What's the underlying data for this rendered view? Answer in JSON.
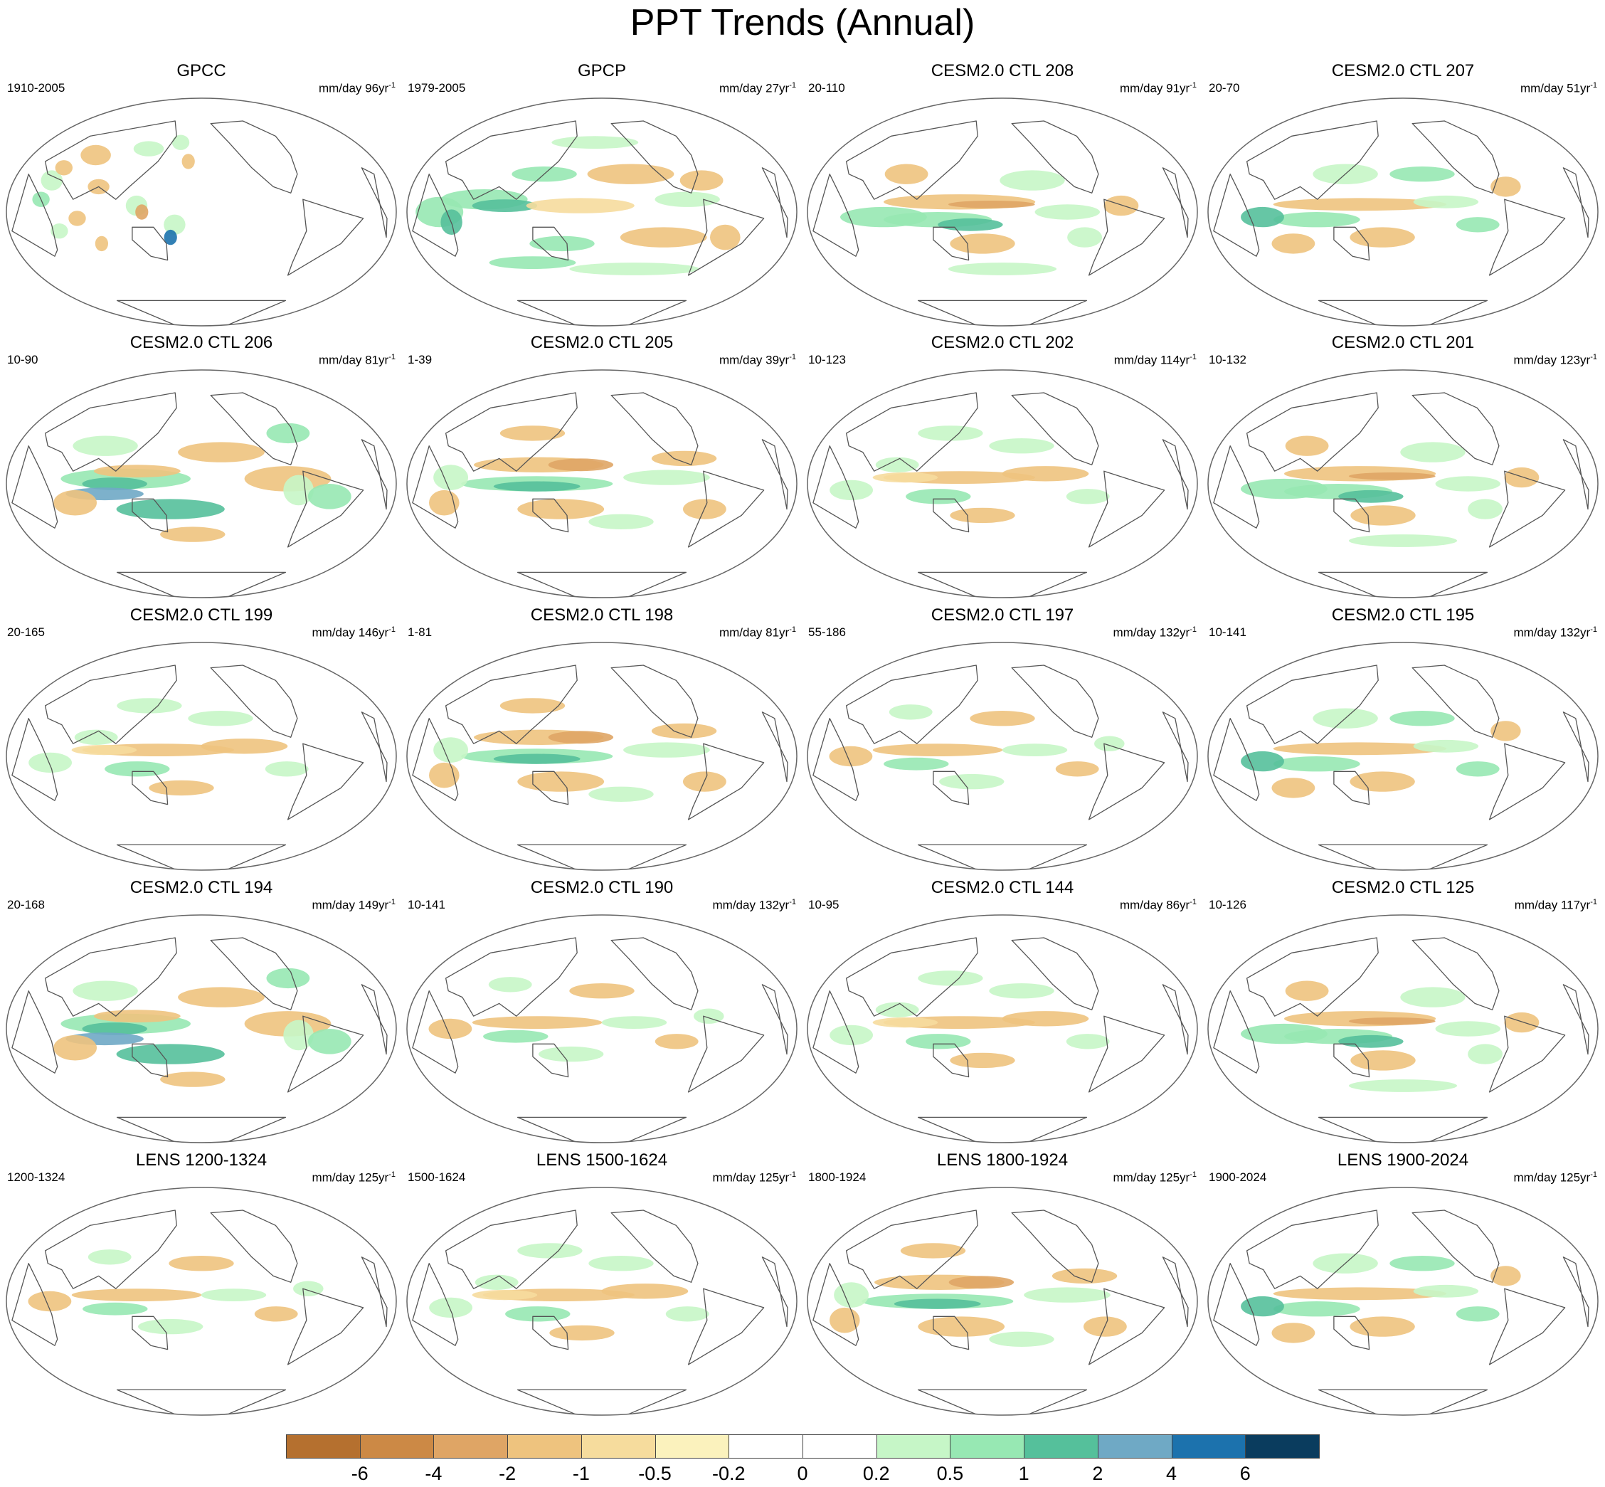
{
  "title": "PPT Trends (Annual)",
  "units_prefix": "mm/day",
  "units_suffix": "yr",
  "units_exponent": "-1",
  "panels": [
    {
      "title": "GPCC",
      "period": "1910-2005",
      "units": "mm/day 96yr",
      "pattern": "gpcc"
    },
    {
      "title": "GPCP",
      "period": "1979-2005",
      "units": "mm/day 27yr",
      "pattern": "gpcp"
    },
    {
      "title": "CESM2.0 CTL 208",
      "period": "20-110",
      "units": "mm/day 91yr",
      "pattern": "a"
    },
    {
      "title": "CESM2.0 CTL 207",
      "period": "20-70",
      "units": "mm/day 51yr",
      "pattern": "b"
    },
    {
      "title": "CESM2.0 CTL 206",
      "period": "10-90",
      "units": "mm/day 81yr",
      "pattern": "c"
    },
    {
      "title": "CESM2.0 CTL 205",
      "period": "1-39",
      "units": "mm/day 39yr",
      "pattern": "d"
    },
    {
      "title": "CESM2.0 CTL 202",
      "period": "10-123",
      "units": "mm/day 114yr",
      "pattern": "e"
    },
    {
      "title": "CESM2.0 CTL 201",
      "period": "10-132",
      "units": "mm/day 123yr",
      "pattern": "a"
    },
    {
      "title": "CESM2.0 CTL 199",
      "period": "20-165",
      "units": "mm/day 146yr",
      "pattern": "e"
    },
    {
      "title": "CESM2.0 CTL 198",
      "period": "1-81",
      "units": "mm/day 81yr",
      "pattern": "d"
    },
    {
      "title": "CESM2.0 CTL 197",
      "period": "55-186",
      "units": "mm/day 132yr",
      "pattern": "f"
    },
    {
      "title": "CESM2.0 CTL 195",
      "period": "10-141",
      "units": "mm/day 132yr",
      "pattern": "b"
    },
    {
      "title": "CESM2.0 CTL 194",
      "period": "20-168",
      "units": "mm/day 149yr",
      "pattern": "c"
    },
    {
      "title": "CESM2.0 CTL 190",
      "period": "10-141",
      "units": "mm/day 132yr",
      "pattern": "f"
    },
    {
      "title": "CESM2.0 CTL 144",
      "period": "10-95",
      "units": "mm/day 86yr",
      "pattern": "e"
    },
    {
      "title": "CESM2.0 CTL 125",
      "period": "10-126",
      "units": "mm/day 117yr",
      "pattern": "a"
    },
    {
      "title": "LENS 1200-1324",
      "period": "1200-1324",
      "units": "mm/day 125yr",
      "pattern": "f"
    },
    {
      "title": "LENS 1500-1624",
      "period": "1500-1624",
      "units": "mm/day 125yr",
      "pattern": "e"
    },
    {
      "title": "LENS 1800-1924",
      "period": "1800-1924",
      "units": "mm/day 125yr",
      "pattern": "d"
    },
    {
      "title": "LENS 1900-2024",
      "period": "1900-2024",
      "units": "mm/day 125yr",
      "pattern": "b"
    }
  ],
  "colorbar": {
    "colors": [
      "#b5702f",
      "#cc8945",
      "#dfa565",
      "#eec37e",
      "#f6dc9d",
      "#fbf2bd",
      "#ffffff",
      "#ffffff",
      "#c6f6c7",
      "#97e8b3",
      "#55c09b",
      "#6fa9c5",
      "#1c72ad",
      "#0a3c5e"
    ],
    "labels": [
      "-6",
      "-4",
      "-2",
      "-1",
      "-0.5",
      "-0.2",
      "0",
      "0.2",
      "0.5",
      "1",
      "2",
      "4",
      "6"
    ]
  }
}
